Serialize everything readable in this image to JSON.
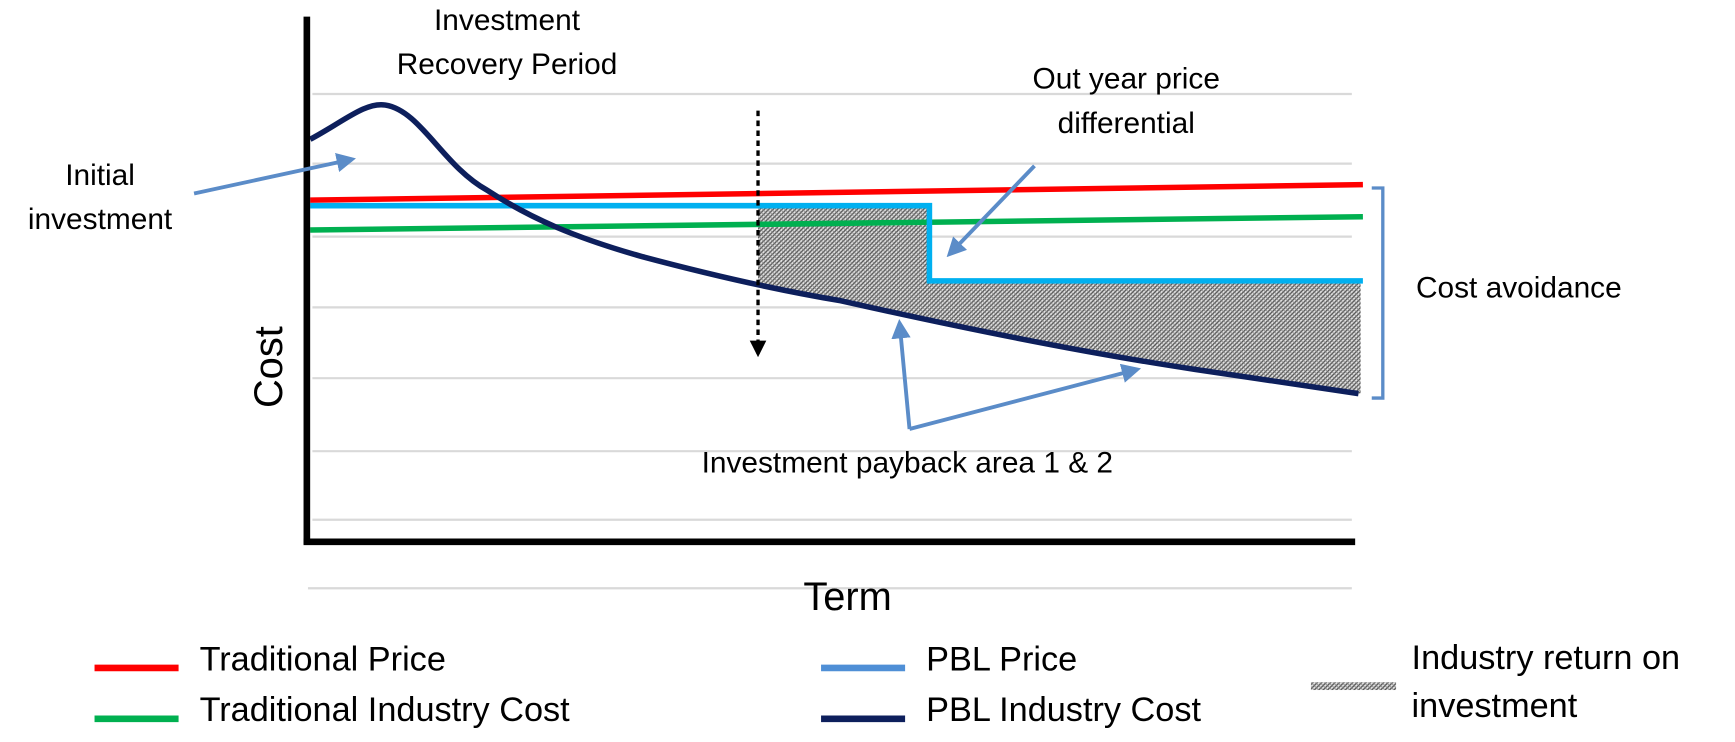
{
  "axes": {
    "y_label": "Cost",
    "x_label": "Term"
  },
  "annotations": {
    "recovery_period": [
      "Investment",
      "Recovery Period"
    ],
    "out_year": [
      "Out year price",
      "differential"
    ],
    "initial_investment": [
      "Initial",
      "investment"
    ],
    "cost_avoidance": "Cost avoidance",
    "payback_area": "Investment payback area 1 & 2"
  },
  "legend": {
    "items": [
      {
        "label": "Traditional Price",
        "color": "#ff0000"
      },
      {
        "label": "Traditional Industry Cost",
        "color": "#00b050"
      },
      {
        "label": "PBL Price",
        "color": "#4f8fd6"
      },
      {
        "label": "PBL Industry Cost",
        "color": "#0d1f5c"
      }
    ],
    "hatch_label": [
      "Industry return on",
      "investment"
    ]
  }
}
